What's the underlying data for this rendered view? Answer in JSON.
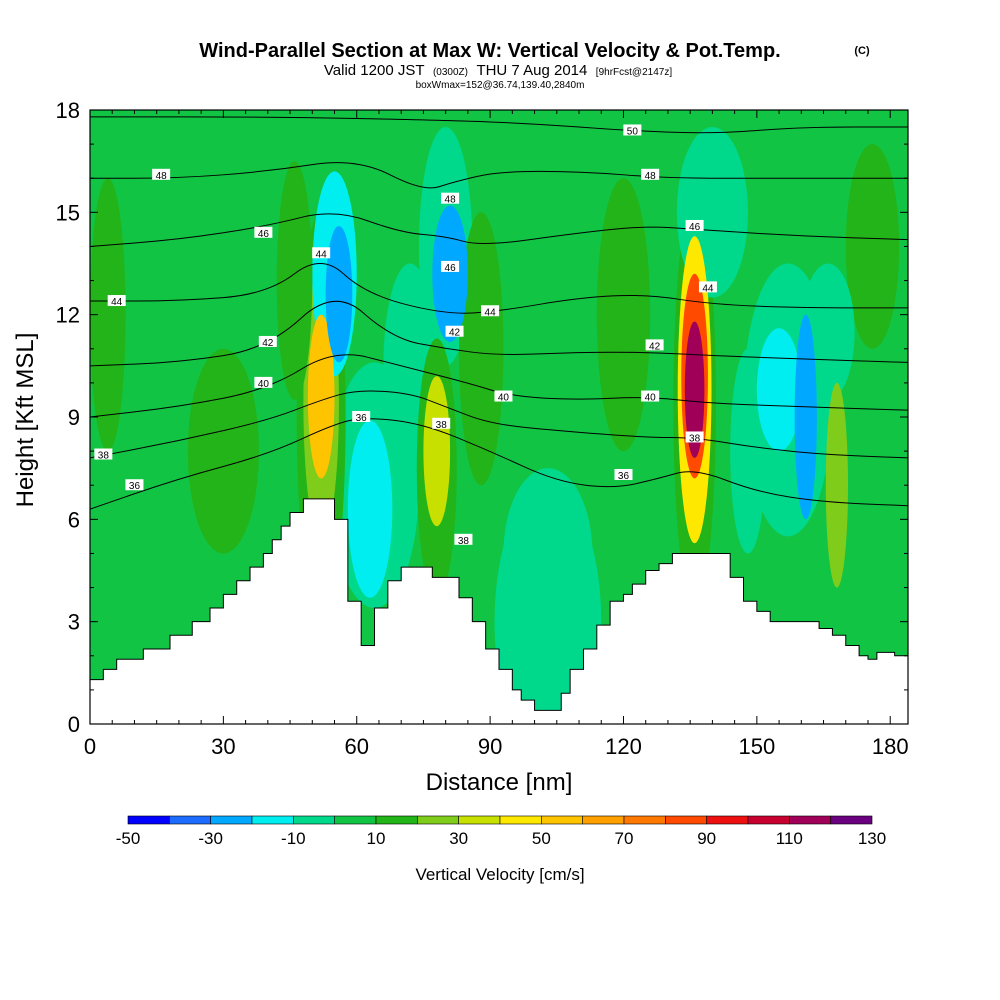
{
  "title": {
    "main": "Wind-Parallel Section at Max W: Vertical Velocity & Pot.Temp.",
    "main_mark": "(C)",
    "line2_a": "Valid 1200 JST",
    "line2_b": "(0300Z)",
    "line2_c": "THU 7 Aug 2014",
    "line2_d": "[9hrFcst@2147z]",
    "line3": "boxWmax=152@36.74,139.40,2840m"
  },
  "chart_data": {
    "type": "heatmap",
    "xlabel": "Distance [nm]",
    "ylabel": "Height [Kft MSL]",
    "xlim": [
      0,
      184
    ],
    "ylim": [
      0,
      18
    ],
    "xticks": [
      0,
      30,
      60,
      90,
      120,
      150,
      180
    ],
    "yticks": [
      0,
      3,
      6,
      9,
      12,
      15,
      18
    ],
    "colorbar": {
      "label": "Vertical Velocity [cm/s]",
      "tick_values": [
        -50,
        -30,
        -10,
        10,
        30,
        50,
        70,
        90,
        110,
        130
      ],
      "bounds": [
        -50,
        -40,
        -30,
        -20,
        -10,
        0,
        10,
        20,
        30,
        40,
        50,
        60,
        70,
        80,
        90,
        100,
        110,
        120,
        130
      ],
      "colors": [
        "#0000ff",
        "#1e6cff",
        "#00a8ff",
        "#00eef0",
        "#00d98c",
        "#11c444",
        "#22b418",
        "#80cc1a",
        "#c8e000",
        "#ffe800",
        "#ffc400",
        "#ffa000",
        "#ff7800",
        "#ff4a00",
        "#ee1010",
        "#c80030",
        "#a00058",
        "#6a0080"
      ]
    },
    "terrain": [
      [
        0,
        1.3
      ],
      [
        3,
        1.3
      ],
      [
        3,
        1.6
      ],
      [
        6,
        1.6
      ],
      [
        6,
        1.9
      ],
      [
        12,
        1.9
      ],
      [
        12,
        2.2
      ],
      [
        18,
        2.2
      ],
      [
        18,
        2.6
      ],
      [
        23,
        2.6
      ],
      [
        23,
        3.0
      ],
      [
        27,
        3.0
      ],
      [
        27,
        3.4
      ],
      [
        30,
        3.4
      ],
      [
        30,
        3.8
      ],
      [
        33,
        3.8
      ],
      [
        33,
        4.2
      ],
      [
        36,
        4.2
      ],
      [
        36,
        4.6
      ],
      [
        39,
        4.6
      ],
      [
        39,
        5.0
      ],
      [
        41,
        5.0
      ],
      [
        41,
        5.4
      ],
      [
        43,
        5.4
      ],
      [
        43,
        5.8
      ],
      [
        45,
        5.8
      ],
      [
        45,
        6.2
      ],
      [
        48,
        6.2
      ],
      [
        48,
        6.6
      ],
      [
        55,
        6.6
      ],
      [
        55,
        6.0
      ],
      [
        58,
        6.0
      ],
      [
        58,
        5.0
      ],
      [
        58,
        3.6
      ],
      [
        61,
        3.6
      ],
      [
        61,
        2.3
      ],
      [
        64,
        2.3
      ],
      [
        64,
        3.4
      ],
      [
        67,
        3.4
      ],
      [
        67,
        4.2
      ],
      [
        70,
        4.2
      ],
      [
        70,
        4.6
      ],
      [
        77,
        4.6
      ],
      [
        77,
        4.3
      ],
      [
        83,
        4.3
      ],
      [
        83,
        3.7
      ],
      [
        86,
        3.7
      ],
      [
        86,
        3.0
      ],
      [
        89,
        3.0
      ],
      [
        89,
        2.2
      ],
      [
        92,
        2.2
      ],
      [
        92,
        1.6
      ],
      [
        95,
        1.6
      ],
      [
        95,
        1.0
      ],
      [
        97,
        1.0
      ],
      [
        97,
        0.7
      ],
      [
        100,
        0.7
      ],
      [
        100,
        0.4
      ],
      [
        106,
        0.4
      ],
      [
        106,
        0.9
      ],
      [
        108,
        0.9
      ],
      [
        108,
        1.6
      ],
      [
        111,
        1.6
      ],
      [
        111,
        2.2
      ],
      [
        114,
        2.2
      ],
      [
        114,
        2.9
      ],
      [
        117,
        2.9
      ],
      [
        117,
        3.6
      ],
      [
        120,
        3.6
      ],
      [
        120,
        3.8
      ],
      [
        122,
        3.8
      ],
      [
        122,
        4.1
      ],
      [
        125,
        4.1
      ],
      [
        125,
        4.5
      ],
      [
        128,
        4.5
      ],
      [
        128,
        4.7
      ],
      [
        131,
        4.7
      ],
      [
        131,
        5.0
      ],
      [
        134,
        5.0
      ],
      [
        134,
        5.0
      ],
      [
        144,
        5.0
      ],
      [
        144,
        4.3
      ],
      [
        147,
        4.3
      ],
      [
        147,
        3.6
      ],
      [
        150,
        3.6
      ],
      [
        150,
        3.3
      ],
      [
        153,
        3.3
      ],
      [
        153,
        3.0
      ],
      [
        164,
        3.0
      ],
      [
        164,
        2.8
      ],
      [
        167,
        2.8
      ],
      [
        167,
        2.6
      ],
      [
        170,
        2.6
      ],
      [
        170,
        2.3
      ],
      [
        173,
        2.3
      ],
      [
        173,
        2.0
      ],
      [
        175,
        2.0
      ],
      [
        175,
        1.9
      ],
      [
        177,
        1.9
      ],
      [
        177,
        2.1
      ],
      [
        181,
        2.1
      ],
      [
        181,
        2.0
      ],
      [
        184,
        2.0
      ],
      [
        184,
        0
      ],
      [
        0,
        0
      ]
    ],
    "background_value": 3,
    "features": [
      {
        "x": 52,
        "y": 9.6,
        "rx": 3,
        "ry": 2.4,
        "value": 50
      },
      {
        "x": 52,
        "y": 9.4,
        "rx": 4,
        "ry": 4.0,
        "value": 25
      },
      {
        "x": 52,
        "y": 9.0,
        "rx": 5.5,
        "ry": 6.0,
        "value": 12
      },
      {
        "x": 56,
        "y": 12.6,
        "rx": 3,
        "ry": 2.0,
        "value": -30
      },
      {
        "x": 55,
        "y": 13.2,
        "rx": 5,
        "ry": 3.0,
        "value": -12
      },
      {
        "x": 63,
        "y": 6.3,
        "rx": 5,
        "ry": 2.6,
        "value": -18
      },
      {
        "x": 64,
        "y": 7.0,
        "rx": 10,
        "ry": 3.6,
        "value": -8
      },
      {
        "x": 78,
        "y": 8.0,
        "rx": 3,
        "ry": 2.2,
        "value": 30
      },
      {
        "x": 78,
        "y": 7.5,
        "rx": 4.5,
        "ry": 3.8,
        "value": 15
      },
      {
        "x": 81,
        "y": 13.2,
        "rx": 4,
        "ry": 2.0,
        "value": -25
      },
      {
        "x": 80,
        "y": 14.0,
        "rx": 6,
        "ry": 3.5,
        "value": -10
      },
      {
        "x": 103,
        "y": 3.0,
        "rx": 12,
        "ry": 4.0,
        "value": -8
      },
      {
        "x": 103,
        "y": 5.0,
        "rx": 10,
        "ry": 2.5,
        "value": -3
      },
      {
        "x": 136,
        "y": 9.8,
        "rx": 2.2,
        "ry": 2.0,
        "value": 115
      },
      {
        "x": 136,
        "y": 10.2,
        "rx": 3,
        "ry": 3.0,
        "value": 80
      },
      {
        "x": 136,
        "y": 9.8,
        "rx": 3.8,
        "ry": 4.5,
        "value": 45
      },
      {
        "x": 136,
        "y": 9.4,
        "rx": 4.8,
        "ry": 6.0,
        "value": 18
      },
      {
        "x": 155,
        "y": 9.8,
        "rx": 5,
        "ry": 1.8,
        "value": -18
      },
      {
        "x": 161,
        "y": 9.0,
        "rx": 2.5,
        "ry": 3.0,
        "value": -28
      },
      {
        "x": 157,
        "y": 9.5,
        "rx": 10,
        "ry": 4.0,
        "value": -8
      },
      {
        "x": 148,
        "y": 8.0,
        "rx": 4,
        "ry": 3.0,
        "value": -6
      },
      {
        "x": 168,
        "y": 7.0,
        "rx": 2.5,
        "ry": 3.0,
        "value": 20
      },
      {
        "x": 46,
        "y": 13.0,
        "rx": 4,
        "ry": 3.5,
        "value": 12
      },
      {
        "x": 88,
        "y": 11.0,
        "rx": 5,
        "ry": 4.0,
        "value": 12
      },
      {
        "x": 120,
        "y": 12.0,
        "rx": 6,
        "ry": 4.0,
        "value": 12
      },
      {
        "x": 176,
        "y": 14.0,
        "rx": 6,
        "ry": 3.0,
        "value": 12
      },
      {
        "x": 30,
        "y": 8.0,
        "rx": 8,
        "ry": 3.0,
        "value": 12
      },
      {
        "x": 15,
        "y": 15.5,
        "rx": 6,
        "ry": 3.0,
        "value": 2
      },
      {
        "x": 4,
        "y": 12.0,
        "rx": 4,
        "ry": 4.0,
        "value": 12
      },
      {
        "x": 72,
        "y": 10.5,
        "rx": 6,
        "ry": 3.0,
        "value": -4
      },
      {
        "x": 140,
        "y": 15.0,
        "rx": 8,
        "ry": 2.5,
        "value": -3
      },
      {
        "x": 166,
        "y": 11.5,
        "rx": 6,
        "ry": 2.0,
        "value": -5
      }
    ],
    "theta_contours": [
      {
        "value": 36,
        "points": [
          [
            0,
            6.3
          ],
          [
            20,
            7.2
          ],
          [
            40,
            7.9
          ],
          [
            55,
            8.8
          ],
          [
            62,
            9.0
          ],
          [
            75,
            8.8
          ],
          [
            90,
            8.0
          ],
          [
            105,
            7.1
          ],
          [
            118,
            6.9
          ],
          [
            128,
            7.2
          ],
          [
            136,
            7.5
          ],
          [
            150,
            6.8
          ],
          [
            165,
            6.5
          ],
          [
            184,
            6.4
          ]
        ]
      },
      {
        "value": 38,
        "points": [
          [
            0,
            7.8
          ],
          [
            20,
            8.3
          ],
          [
            40,
            8.9
          ],
          [
            52,
            9.5
          ],
          [
            60,
            9.8
          ],
          [
            72,
            9.7
          ],
          [
            80,
            9.3
          ],
          [
            90,
            8.8
          ],
          [
            105,
            8.6
          ],
          [
            125,
            8.4
          ],
          [
            136,
            8.4
          ],
          [
            150,
            8.1
          ],
          [
            165,
            7.9
          ],
          [
            184,
            7.8
          ]
        ]
      },
      {
        "value": 40,
        "points": [
          [
            0,
            9.0
          ],
          [
            20,
            9.3
          ],
          [
            40,
            9.8
          ],
          [
            55,
            11.0
          ],
          [
            70,
            10.5
          ],
          [
            85,
            10.0
          ],
          [
            95,
            9.6
          ],
          [
            110,
            9.5
          ],
          [
            125,
            9.6
          ],
          [
            140,
            9.4
          ],
          [
            160,
            9.3
          ],
          [
            184,
            9.2
          ]
        ]
      },
      {
        "value": 42,
        "points": [
          [
            0,
            10.5
          ],
          [
            20,
            10.6
          ],
          [
            40,
            11.0
          ],
          [
            55,
            12.8
          ],
          [
            68,
            11.3
          ],
          [
            80,
            11.0
          ],
          [
            92,
            10.8
          ],
          [
            110,
            10.9
          ],
          [
            125,
            10.9
          ],
          [
            140,
            10.8
          ],
          [
            160,
            10.7
          ],
          [
            184,
            10.6
          ]
        ]
      },
      {
        "value": 44,
        "points": [
          [
            0,
            12.4
          ],
          [
            20,
            12.4
          ],
          [
            40,
            12.6
          ],
          [
            52,
            13.8
          ],
          [
            62,
            12.6
          ],
          [
            80,
            12.0
          ],
          [
            92,
            12.1
          ],
          [
            110,
            12.5
          ],
          [
            125,
            12.6
          ],
          [
            140,
            12.3
          ],
          [
            160,
            12.2
          ],
          [
            184,
            12.2
          ]
        ]
      },
      {
        "value": 46,
        "points": [
          [
            0,
            14.0
          ],
          [
            20,
            14.2
          ],
          [
            40,
            14.6
          ],
          [
            55,
            15.1
          ],
          [
            70,
            14.4
          ],
          [
            80,
            14.3
          ],
          [
            88,
            14.0
          ],
          [
            110,
            14.4
          ],
          [
            125,
            14.6
          ],
          [
            136,
            14.5
          ],
          [
            160,
            14.3
          ],
          [
            184,
            14.2
          ]
        ]
      },
      {
        "value": 48,
        "points": [
          [
            0,
            16.0
          ],
          [
            20,
            16.0
          ],
          [
            40,
            16.2
          ],
          [
            60,
            16.6
          ],
          [
            75,
            15.6
          ],
          [
            82,
            15.9
          ],
          [
            92,
            16.2
          ],
          [
            110,
            16.2
          ],
          [
            130,
            16.0
          ],
          [
            150,
            16.0
          ],
          [
            184,
            16.0
          ]
        ]
      },
      {
        "value": 50,
        "points": [
          [
            0,
            17.8
          ],
          [
            40,
            17.8
          ],
          [
            80,
            17.7
          ],
          [
            100,
            17.6
          ],
          [
            120,
            17.4
          ],
          [
            140,
            17.3
          ],
          [
            160,
            17.5
          ],
          [
            184,
            17.5
          ]
        ]
      }
    ],
    "contour_labels": [
      {
        "text": "36",
        "x": 10,
        "y": 7.0
      },
      {
        "text": "38",
        "x": 3,
        "y": 7.9
      },
      {
        "text": "40",
        "x": 39,
        "y": 10.0
      },
      {
        "text": "42",
        "x": 40,
        "y": 11.2
      },
      {
        "text": "44",
        "x": 6,
        "y": 12.4
      },
      {
        "text": "46",
        "x": 39,
        "y": 14.4
      },
      {
        "text": "48",
        "x": 16,
        "y": 16.1
      },
      {
        "text": "44",
        "x": 52,
        "y": 13.8
      },
      {
        "text": "36",
        "x": 61,
        "y": 9.0
      },
      {
        "text": "48",
        "x": 81,
        "y": 15.4
      },
      {
        "text": "46",
        "x": 81,
        "y": 13.4
      },
      {
        "text": "42",
        "x": 82,
        "y": 11.5
      },
      {
        "text": "44",
        "x": 90,
        "y": 12.1
      },
      {
        "text": "38",
        "x": 79,
        "y": 8.8
      },
      {
        "text": "40",
        "x": 93,
        "y": 9.6
      },
      {
        "text": "38",
        "x": 84,
        "y": 5.4
      },
      {
        "text": "36",
        "x": 120,
        "y": 7.3
      },
      {
        "text": "40",
        "x": 126,
        "y": 9.6
      },
      {
        "text": "42",
        "x": 127,
        "y": 11.1
      },
      {
        "text": "38",
        "x": 136,
        "y": 8.4
      },
      {
        "text": "44",
        "x": 139,
        "y": 12.8
      },
      {
        "text": "46",
        "x": 136,
        "y": 14.6
      },
      {
        "text": "48",
        "x": 126,
        "y": 16.1
      },
      {
        "text": "50",
        "x": 122,
        "y": 17.4
      }
    ]
  }
}
